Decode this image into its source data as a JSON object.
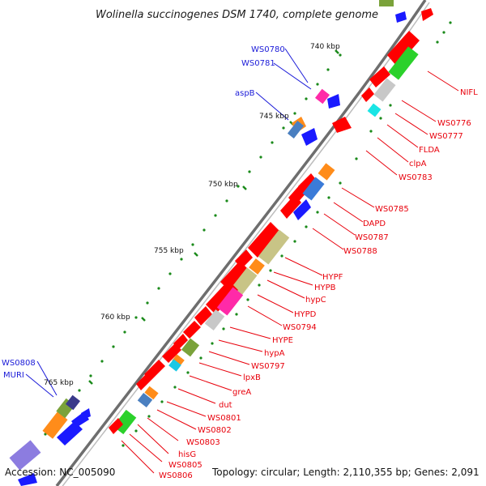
{
  "title": "Wolinella succinogenes DSM 1740, complete genome",
  "accession": "Accession: NC_005090",
  "summary": "Topology: circular; Length: 2,110,355 bp; Genes: 2,091",
  "scale_marks": [
    "740 kbp",
    "745 kbp",
    "750 kbp",
    "755 kbp",
    "760 kbp",
    "765 kbp"
  ],
  "gene_labels_blue": [
    "WS0780",
    "WS0781",
    "aspB",
    "WS0808",
    "MURI"
  ],
  "gene_labels_red": [
    "NIFL",
    "WS0776",
    "WS0777",
    "FLDA",
    "clpA",
    "WS0783",
    "WS0785",
    "DAPD",
    "WS0787",
    "WS0788",
    "HYPF",
    "HYPB",
    "hypC",
    "HYPD",
    "WS0794",
    "HYPE",
    "hypA",
    "WS0797",
    "lpxB",
    "greA",
    "dut",
    "WS0801",
    "WS0802",
    "WS0803",
    "hisG",
    "WS0805",
    "WS0806"
  ],
  "colors": {
    "forward_gene": "#1a1aff",
    "reverse_gene": "#ff0000",
    "label_blue": "#1a1ad8",
    "label_red": "#e8000b",
    "backbone": "#666666",
    "tick": "#1a8a1a"
  }
}
